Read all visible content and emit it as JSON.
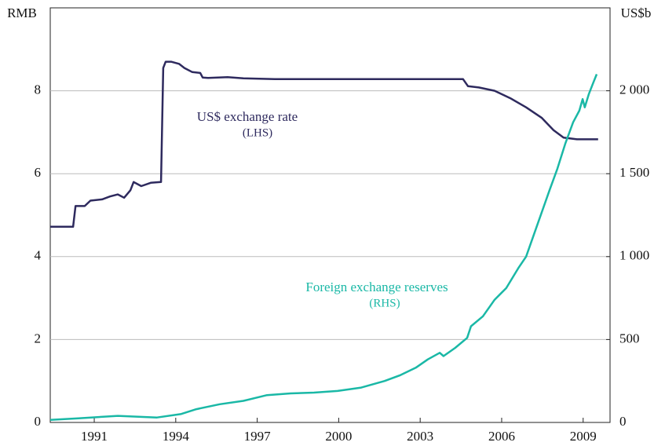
{
  "chart_data": {
    "type": "line",
    "y_label": "RMB",
    "y2_label": "US$b",
    "annotations": [
      "US$ exchange rate",
      "(LHS)",
      "Foreign exchange reserves",
      "(RHS)"
    ],
    "xlim": [
      1989.38,
      2009.99
    ],
    "xticks": [
      1991,
      1994,
      1997,
      2000,
      2003,
      2006,
      2009
    ],
    "ylim": [
      0,
      10
    ],
    "yticks": [
      0,
      2,
      4,
      6,
      8
    ],
    "y2lim": [
      0,
      2500
    ],
    "y2ticks": [
      0,
      500,
      {
        "value": 1000,
        "label": "1 000"
      },
      {
        "value": 1500,
        "label": "1 500"
      },
      {
        "value": 2000,
        "label": "2 000"
      }
    ],
    "grid": true,
    "series": [
      {
        "name": "US$ exchange rate",
        "color": "#2e2a5e",
        "axis": "y",
        "x": [
          1989.38,
          1990.22,
          1990.31,
          1990.65,
          1990.86,
          1991.29,
          1991.58,
          1991.87,
          1992.1,
          1992.33,
          1992.45,
          1992.59,
          1992.73,
          1993.08,
          1993.46,
          1993.54,
          1993.63,
          1993.83,
          1994.12,
          1994.32,
          1994.61,
          1994.9,
          1994.99,
          1995.19,
          1995.91,
          1996.49,
          1997.65,
          2004.58,
          2004.76,
          2005.16,
          2005.74,
          2006.32,
          2006.9,
          2007.47,
          2007.91,
          2008.28,
          2008.77,
          2009.55
        ],
        "values": [
          4.72,
          4.72,
          5.22,
          5.22,
          5.35,
          5.38,
          5.45,
          5.5,
          5.42,
          5.6,
          5.8,
          5.75,
          5.7,
          5.78,
          5.8,
          8.55,
          8.7,
          8.7,
          8.65,
          8.55,
          8.45,
          8.43,
          8.32,
          8.31,
          8.33,
          8.3,
          8.28,
          8.28,
          8.11,
          8.08,
          8.0,
          7.82,
          7.6,
          7.35,
          7.05,
          6.87,
          6.83,
          6.83
        ]
      },
      {
        "name": "Foreign exchange reserves",
        "color": "#1ab8a6",
        "axis": "y2",
        "x": [
          1989.38,
          1990.42,
          1991.87,
          1993.31,
          1994.18,
          1994.76,
          1995.62,
          1996.49,
          1997.36,
          1998.23,
          1999.09,
          1999.96,
          2000.83,
          2001.69,
          2002.27,
          2002.84,
          2003.28,
          2003.72,
          2003.86,
          2004.29,
          2004.73,
          2004.87,
          2005.31,
          2005.74,
          2006.17,
          2006.61,
          2006.9,
          2007.33,
          2007.76,
          2008.05,
          2008.34,
          2008.63,
          2008.86,
          2008.98,
          2009.06,
          2009.21,
          2009.35,
          2009.5
        ],
        "values": [
          15,
          25,
          40,
          30,
          50,
          80,
          110,
          130,
          165,
          175,
          180,
          190,
          210,
          250,
          285,
          330,
          380,
          420,
          400,
          450,
          510,
          580,
          640,
          740,
          810,
          930,
          1000,
          1200,
          1400,
          1530,
          1680,
          1810,
          1880,
          1950,
          1900,
          1980,
          2040,
          2100
        ]
      }
    ]
  }
}
